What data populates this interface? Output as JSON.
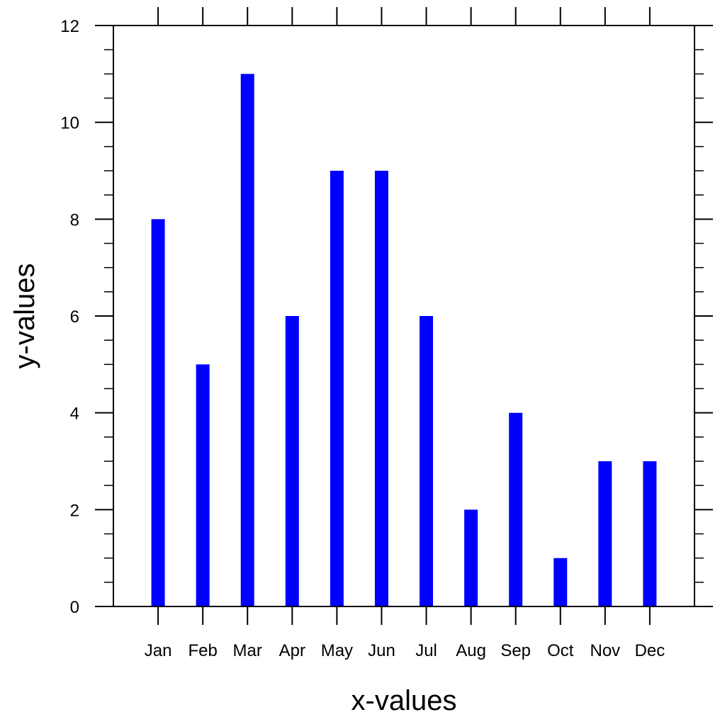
{
  "chart_data": {
    "type": "bar",
    "title": "",
    "xlabel": "x-values",
    "ylabel": "y-values",
    "categories": [
      "Jan",
      "Feb",
      "Mar",
      "Apr",
      "May",
      "Jun",
      "Jul",
      "Aug",
      "Sep",
      "Oct",
      "Nov",
      "Dec"
    ],
    "values": [
      8,
      5,
      11,
      6,
      9,
      9,
      6,
      2,
      4,
      1,
      3,
      3
    ],
    "ylim": [
      0,
      12
    ],
    "yticks": [
      0,
      2,
      4,
      6,
      8,
      10,
      12
    ],
    "y_minor_step": 0.5,
    "xlim": [
      0,
      13
    ],
    "bar_color": "#0000ff",
    "grid": false,
    "legend": "none"
  }
}
